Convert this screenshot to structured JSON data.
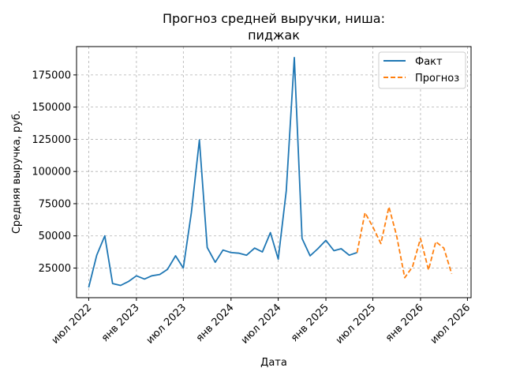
{
  "chart_data": {
    "type": "line",
    "title_lines": [
      "Прогноз средней выручки, ниша:",
      "пиджак"
    ],
    "xlabel": "Дата",
    "ylabel": "Средняя выручка, руб.",
    "grid": true,
    "legend_position": "top-right",
    "x_range": [
      "2022-05-15",
      "2026-07-15"
    ],
    "ylim": [
      2000,
      197000
    ],
    "y_ticks": [
      25000,
      50000,
      75000,
      100000,
      125000,
      150000,
      175000
    ],
    "y_tick_labels": [
      "25000",
      "50000",
      "75000",
      "100000",
      "125000",
      "150000",
      "175000"
    ],
    "x_ticks": [
      "2022-07-01",
      "2023-01-01",
      "2023-07-01",
      "2024-01-01",
      "2024-07-01",
      "2025-01-01",
      "2025-07-01",
      "2026-01-01",
      "2026-07-01"
    ],
    "x_tick_labels": [
      "июл 2022",
      "янв 2023",
      "июл 2023",
      "янв 2024",
      "июл 2024",
      "янв 2025",
      "июл 2025",
      "янв 2026",
      "июл 2026"
    ],
    "series": [
      {
        "name": "Факт",
        "color": "#1f77b4",
        "dash": "solid",
        "x": [
          "2022-07-01",
          "2022-08-01",
          "2022-09-01",
          "2022-10-01",
          "2022-11-01",
          "2022-12-01",
          "2023-01-01",
          "2023-02-01",
          "2023-03-01",
          "2023-04-01",
          "2023-05-01",
          "2023-06-01",
          "2023-07-01",
          "2023-08-01",
          "2023-09-01",
          "2023-10-01",
          "2023-11-01",
          "2023-12-01",
          "2024-01-01",
          "2024-02-01",
          "2024-03-01",
          "2024-04-01",
          "2024-05-01",
          "2024-06-01",
          "2024-07-01",
          "2024-08-01",
          "2024-09-01",
          "2024-10-01",
          "2024-11-01",
          "2024-12-01",
          "2025-01-01",
          "2025-02-01",
          "2025-03-01",
          "2025-04-01",
          "2025-05-01"
        ],
        "values": [
          10000,
          35000,
          50000,
          13000,
          11500,
          14500,
          19000,
          16500,
          19000,
          20000,
          24000,
          34500,
          25000,
          68000,
          124500,
          41000,
          29500,
          39000,
          37000,
          36500,
          35000,
          40500,
          37500,
          52500,
          32000,
          85000,
          188500,
          48000,
          34500,
          40000,
          46500,
          38500,
          40000,
          35000,
          37000
        ]
      },
      {
        "name": "Прогноз",
        "color": "#ff7f0e",
        "dash": "dashed",
        "x": [
          "2025-05-01",
          "2025-06-01",
          "2025-07-01",
          "2025-08-01",
          "2025-09-01",
          "2025-10-01",
          "2025-11-01",
          "2025-12-01",
          "2026-01-01",
          "2026-02-01",
          "2026-03-01",
          "2026-04-01",
          "2026-05-01"
        ],
        "values": [
          37000,
          68000,
          57000,
          44000,
          72500,
          50000,
          17500,
          26000,
          48000,
          23500,
          45500,
          40500,
          20500
        ]
      }
    ]
  }
}
